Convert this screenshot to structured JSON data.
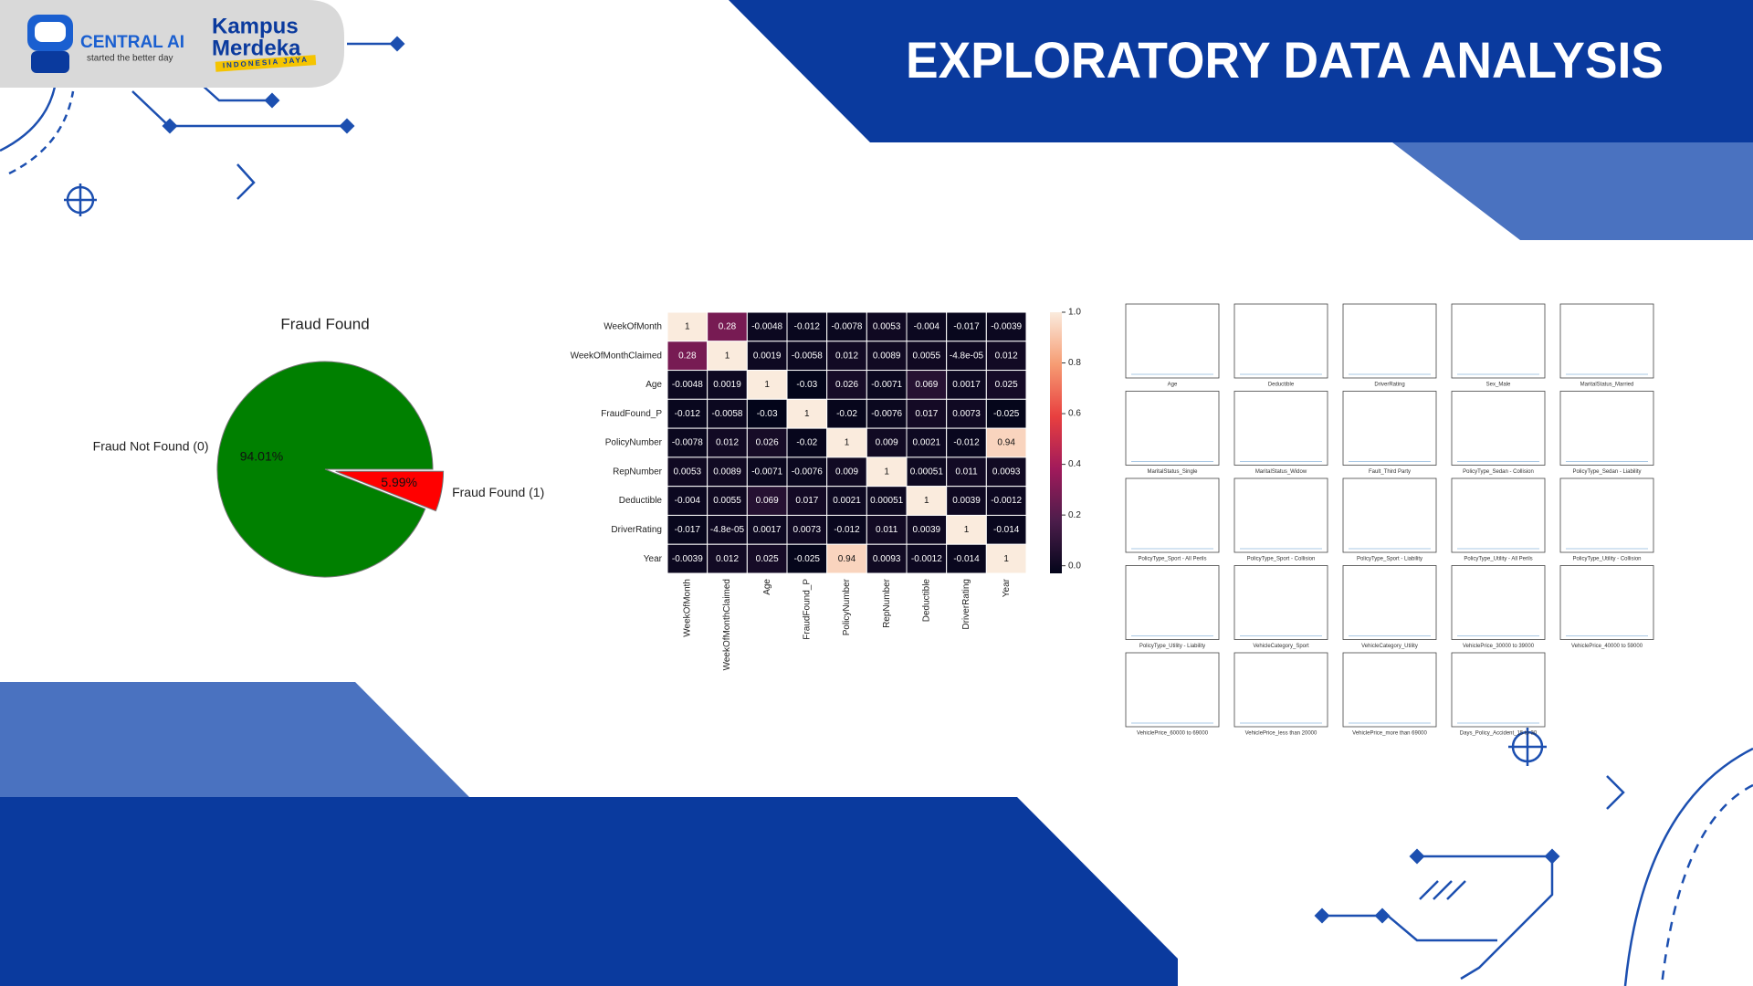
{
  "header": {
    "logo_name": "CENTRAL AI",
    "logo_tagline": "started the better day",
    "partner_line1": "Kampus",
    "partner_line2": "Merdeka",
    "partner_tagline": "INDONESIA JAYA",
    "title": "EXPLORATORY DATA ANALYSIS"
  },
  "chart_data": [
    {
      "type": "pie",
      "title": "Fraud Found",
      "categories": [
        "Fraud Not Found (0)",
        "Fraud Found (1)"
      ],
      "values": [
        94.01,
        5.99
      ],
      "value_labels": [
        "94.01%",
        "5.99%"
      ],
      "colors": [
        "#008000",
        "#ff0000"
      ],
      "explode": [
        0,
        0.1
      ]
    },
    {
      "type": "heatmap",
      "rows": [
        "WeekOfMonth",
        "WeekOfMonthClaimed",
        "Age",
        "FraudFound_P",
        "PolicyNumber",
        "RepNumber",
        "Deductible",
        "DriverRating",
        "Year"
      ],
      "columns": [
        "WeekOfMonth",
        "WeekOfMonthClaimed",
        "Age",
        "FraudFound_P",
        "PolicyNumber",
        "RepNumber",
        "Deductible",
        "DriverRating",
        "Year"
      ],
      "matrix": [
        [
          1,
          0.28,
          -0.0048,
          -0.012,
          -0.0078,
          0.0053,
          -0.004,
          -0.017,
          -0.0039
        ],
        [
          0.28,
          1,
          0.0019,
          -0.0058,
          0.012,
          0.0089,
          0.0055,
          -4.8e-05,
          0.012
        ],
        [
          -0.0048,
          0.0019,
          1,
          -0.03,
          0.026,
          -0.0071,
          0.069,
          0.0017,
          0.025
        ],
        [
          -0.012,
          -0.0058,
          -0.03,
          1,
          -0.02,
          -0.0076,
          0.017,
          0.0073,
          -0.025
        ],
        [
          -0.0078,
          0.012,
          0.026,
          -0.02,
          1,
          0.009,
          0.0021,
          -0.012,
          0.94
        ],
        [
          0.0053,
          0.0089,
          -0.0071,
          -0.0076,
          0.009,
          1,
          0.00051,
          0.011,
          0.0093
        ],
        [
          -0.004,
          0.0055,
          0.069,
          0.017,
          0.0021,
          0.00051,
          1,
          0.0039,
          -0.0012
        ],
        [
          -0.017,
          -4.8e-05,
          0.0017,
          0.0073,
          -0.012,
          0.011,
          0.0039,
          1,
          -0.014
        ],
        [
          -0.0039,
          0.012,
          0.025,
          -0.025,
          0.94,
          0.0093,
          -0.0012,
          -0.014,
          1
        ]
      ],
      "value_labels": [
        [
          "1",
          "0.28",
          "-0.0048",
          "-0.012",
          "-0.0078",
          "0.0053",
          "-0.004",
          "-0.017",
          "-0.0039"
        ],
        [
          "0.28",
          "1",
          "0.0019",
          "-0.0058",
          "0.012",
          "0.0089",
          "0.0055",
          "-4.8e-05",
          "0.012"
        ],
        [
          "-0.0048",
          "0.0019",
          "1",
          "-0.03",
          "0.026",
          "-0.0071",
          "0.069",
          "0.0017",
          "0.025"
        ],
        [
          "-0.012",
          "-0.0058",
          "-0.03",
          "1",
          "-0.02",
          "-0.0076",
          "0.017",
          "0.0073",
          "-0.025"
        ],
        [
          "-0.0078",
          "0.012",
          "0.026",
          "-0.02",
          "1",
          "0.009",
          "0.0021",
          "-0.012",
          "0.94"
        ],
        [
          "0.0053",
          "0.0089",
          "-0.0071",
          "-0.0076",
          "0.009",
          "1",
          "0.00051",
          "0.011",
          "0.0093"
        ],
        [
          "-0.004",
          "0.0055",
          "0.069",
          "0.017",
          "0.0021",
          "0.00051",
          "1",
          "0.0039",
          "-0.0012"
        ],
        [
          "-0.017",
          "-4.8e-05",
          "0.0017",
          "0.0073",
          "-0.012",
          "0.011",
          "0.0039",
          "1",
          "-0.014"
        ],
        [
          "-0.0039",
          "0.012",
          "0.025",
          "-0.025",
          "0.94",
          "0.0093",
          "-0.0012",
          "-0.014",
          "1"
        ]
      ],
      "colorbar_lim": [
        -0.03,
        1
      ],
      "colorbar_ticks": [
        {
          "value": 0,
          "label": "0.0"
        },
        {
          "value": 0.2,
          "label": "0.2"
        },
        {
          "value": 0.4,
          "label": "0.4"
        },
        {
          "value": 0.6,
          "label": "0.6"
        },
        {
          "value": 0.8,
          "label": "0.8"
        },
        {
          "value": 1,
          "label": "1.0"
        }
      ],
      "colormap": [
        "#03051a",
        "#4c1d4b",
        "#a11a5b",
        "#e83f3f",
        "#f69c73",
        "#faebdd"
      ]
    }
  ],
  "distribution_plots": {
    "labels": [
      "Age",
      "Deductible",
      "DriverRating",
      "Sex_Male",
      "MaritalStatus_Married",
      "MaritalStatus_Single",
      "MaritalStatus_Widow",
      "Fault_Third Party",
      "PolicyType_Sedan - Collision",
      "PolicyType_Sedan - Liability",
      "PolicyType_Sport - All Perils",
      "PolicyType_Sport - Collision",
      "PolicyType_Sport - Liability",
      "PolicyType_Utility - All Perils",
      "PolicyType_Utility - Collision",
      "PolicyType_Utility - Liability",
      "VehicleCategory_Sport",
      "VehicleCategory_Utility",
      "VehiclePrice_30000 to 39000",
      "VehiclePrice_40000 to 59000",
      "VehiclePrice_60000 to 69000",
      "VehiclePrice_less than 20000",
      "VehiclePrice_more than 69000",
      "Days_Policy_Accident_15 to 30"
    ]
  }
}
